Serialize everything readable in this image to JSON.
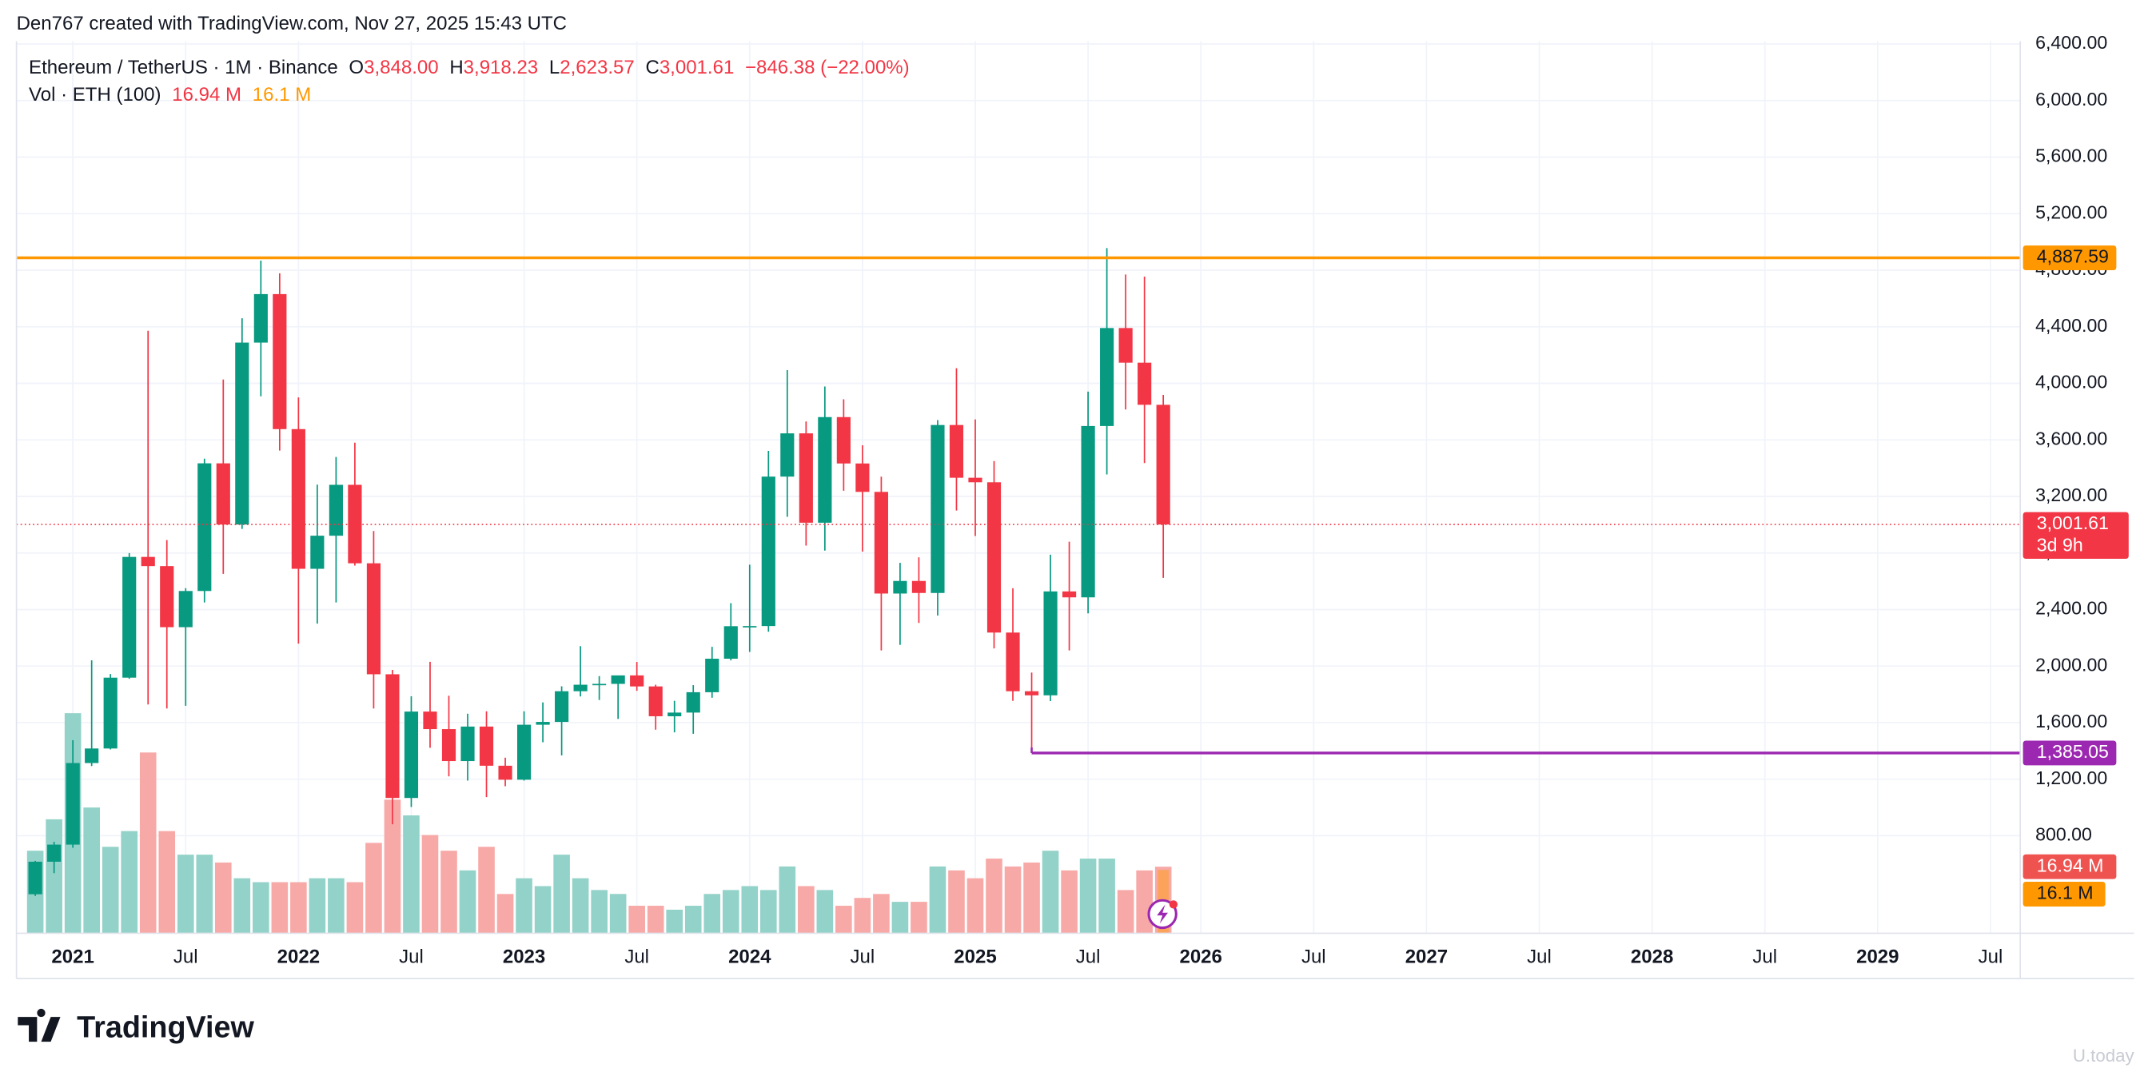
{
  "chart_data": {
    "type": "candlestick",
    "credit": "Den767 created with TradingView.com, Nov 27, 2025 15:43 UTC",
    "symbol": "Ethereum / TetherUS · 1M · Binance",
    "ohlc_legend": [
      {
        "key": "O",
        "label": "3,848.00"
      },
      {
        "key": "H",
        "label": "3,918.23"
      },
      {
        "key": "L",
        "label": "2,623.57"
      },
      {
        "key": "C",
        "label": "3,001.61"
      }
    ],
    "change_label": "−846.38 (−22.00%)",
    "volume_title": "Vol · ETH (100)",
    "volume_last_label": "16.94 M",
    "volume_ma": 16.1,
    "volume_ma_label": "16.1 M",
    "logo": "TradingView",
    "watermark": "U.today",
    "up_color": "#089981",
    "down_color": "#f23645",
    "up_volume_color": "#92d2c8",
    "down_volume_color": "#f7a9a7",
    "volume_ma_color": "#ff9800",
    "grid": true,
    "x": [
      "2020-11",
      "2020-12",
      "2021-01",
      "2021-02",
      "2021-03",
      "2021-04",
      "2021-05",
      "2021-06",
      "2021-07",
      "2021-08",
      "2021-09",
      "2021-10",
      "2021-11",
      "2021-12",
      "2022-01",
      "2022-02",
      "2022-03",
      "2022-04",
      "2022-05",
      "2022-06",
      "2022-07",
      "2022-08",
      "2022-09",
      "2022-10",
      "2022-11",
      "2022-12",
      "2023-01",
      "2023-02",
      "2023-03",
      "2023-04",
      "2023-05",
      "2023-06",
      "2023-07",
      "2023-08",
      "2023-09",
      "2023-10",
      "2023-11",
      "2023-12",
      "2024-01",
      "2024-02",
      "2024-03",
      "2024-04",
      "2024-05",
      "2024-06",
      "2024-07",
      "2024-08",
      "2024-09",
      "2024-10",
      "2024-11",
      "2024-12",
      "2025-01",
      "2025-02",
      "2025-03",
      "2025-04",
      "2025-05",
      "2025-06",
      "2025-07",
      "2025-08",
      "2025-09",
      "2025-10",
      "2025-11"
    ],
    "open": [
      386,
      616,
      737,
      1314,
      1417,
      1918,
      2772,
      2707,
      2275,
      2531,
      3434,
      3001,
      4288,
      4631,
      3676,
      2688,
      2922,
      3282,
      2727,
      1942,
      1067,
      1678,
      1554,
      1328,
      1572,
      1295,
      1196,
      1585,
      1605,
      1822,
      1868,
      1874,
      1934,
      1856,
      1645,
      1671,
      1815,
      2052,
      2282,
      2283,
      3340,
      3646,
      3014,
      3761,
      3433,
      3232,
      2513,
      2602,
      2517,
      3705,
      3332,
      3300,
      2237,
      1822,
      1793,
      2528,
      2486,
      3698,
      4391,
      4146,
      3848
    ],
    "high": [
      622,
      757,
      1476,
      2041,
      1944,
      2799,
      4372,
      2891,
      2551,
      3467,
      4027,
      4460,
      4868,
      4778,
      3900,
      3283,
      3479,
      3580,
      2955,
      1973,
      1786,
      2030,
      1790,
      1663,
      1680,
      1352,
      1680,
      1743,
      1857,
      2141,
      1929,
      1931,
      2029,
      1868,
      1754,
      1865,
      2136,
      2445,
      2717,
      3522,
      4093,
      3730,
      3977,
      3887,
      3562,
      3340,
      2730,
      2769,
      3740,
      4107,
      3745,
      3450,
      2550,
      1954,
      2788,
      2880,
      3941,
      4956,
      4770,
      4755,
      3918.23
    ],
    "low": [
      374,
      535,
      715,
      1293,
      1410,
      1910,
      1728,
      1700,
      1719,
      2450,
      2652,
      2970,
      3908,
      3524,
      2159,
      2300,
      2450,
      2711,
      1700,
      881,
      1003,
      1422,
      1220,
      1190,
      1073,
      1150,
      1190,
      1461,
      1368,
      1785,
      1760,
      1626,
      1825,
      1550,
      1531,
      1521,
      1776,
      2040,
      2100,
      2243,
      3056,
      2852,
      2817,
      3240,
      2810,
      2111,
      2150,
      2305,
      2357,
      3100,
      2920,
      2125,
      1754,
      1385,
      1752,
      2111,
      2373,
      3355,
      3815,
      3436,
      2623.57
    ],
    "close": [
      616,
      737,
      1314,
      1417,
      1918,
      2772,
      2707,
      2275,
      2531,
      3434,
      3001,
      4288,
      4631,
      3676,
      2688,
      2922,
      3282,
      2727,
      1942,
      1067,
      1678,
      1554,
      1328,
      1572,
      1295,
      1196,
      1585,
      1605,
      1822,
      1868,
      1874,
      1934,
      1856,
      1645,
      1671,
      1815,
      2052,
      2282,
      2283,
      3340,
      3646,
      3014,
      3761,
      3433,
      3232,
      2513,
      2602,
      2517,
      3705,
      3332,
      3300,
      2237,
      1822,
      1793,
      2528,
      2486,
      3698,
      4391,
      4146,
      3848,
      3001.61
    ],
    "volume": [
      21,
      29,
      56,
      32,
      22,
      26,
      46,
      26,
      20,
      20,
      18,
      14,
      13,
      13,
      13,
      14,
      14,
      13,
      23,
      34,
      30,
      25,
      21,
      16,
      22,
      10,
      14,
      12,
      20,
      14,
      11,
      10,
      7,
      7,
      6,
      7,
      10,
      11,
      12,
      11,
      17,
      12,
      11,
      7,
      9,
      10,
      8,
      8,
      17,
      16,
      14,
      19,
      17,
      18,
      21,
      16,
      19,
      19,
      11,
      16,
      16.94
    ],
    "xlim": [
      "2020-10",
      "2029-08"
    ],
    "xticks": [
      {
        "value": "2021-01",
        "label": "2021"
      },
      {
        "value": "2021-07",
        "label": "Jul"
      },
      {
        "value": "2022-01",
        "label": "2022"
      },
      {
        "value": "2022-07",
        "label": "Jul"
      },
      {
        "value": "2023-01",
        "label": "2023"
      },
      {
        "value": "2023-07",
        "label": "Jul"
      },
      {
        "value": "2024-01",
        "label": "2024"
      },
      {
        "value": "2024-07",
        "label": "Jul"
      },
      {
        "value": "2025-01",
        "label": "2025"
      },
      {
        "value": "2025-07",
        "label": "Jul"
      },
      {
        "value": "2026-01",
        "label": "2026"
      },
      {
        "value": "2026-07",
        "label": "Jul"
      },
      {
        "value": "2027-01",
        "label": "2027"
      },
      {
        "value": "2027-07",
        "label": "Jul"
      },
      {
        "value": "2028-01",
        "label": "2028"
      },
      {
        "value": "2028-07",
        "label": "Jul"
      },
      {
        "value": "2029-01",
        "label": "2029"
      },
      {
        "value": "2029-07",
        "label": "Jul"
      }
    ],
    "ylim": [
      110,
      6420
    ],
    "yticks": [
      {
        "value": 800,
        "label": "800.00"
      },
      {
        "value": 1200,
        "label": "1,200.00"
      },
      {
        "value": 1600,
        "label": "1,600.00"
      },
      {
        "value": 2000,
        "label": "2,000.00"
      },
      {
        "value": 2400,
        "label": "2,400.00"
      },
      {
        "value": 2800,
        "label": "2,800.00"
      },
      {
        "value": 3200,
        "label": "3,200.00"
      },
      {
        "value": 3600,
        "label": "3,600.00"
      },
      {
        "value": 4000,
        "label": "4,000.00"
      },
      {
        "value": 4400,
        "label": "4,400.00"
      },
      {
        "value": 4800,
        "label": "4,800.00"
      },
      {
        "value": 5200,
        "label": "5,200.00"
      },
      {
        "value": 5600,
        "label": "5,600.00"
      },
      {
        "value": 6000,
        "label": "6,000.00"
      },
      {
        "value": 6400,
        "label": "6,400.00"
      }
    ],
    "vlim": [
      0,
      227
    ],
    "lines": [
      {
        "value": 4887.59,
        "label": "4,887.59",
        "color": "#ff9800"
      },
      {
        "value": 1385.05,
        "label": "1,385.05",
        "color": "#9c27b0",
        "from": "2025-04"
      }
    ],
    "price_line": {
      "value": 3001.61,
      "label": "3,001.61",
      "countdown": "3d 9h",
      "color": "#f23645"
    }
  }
}
